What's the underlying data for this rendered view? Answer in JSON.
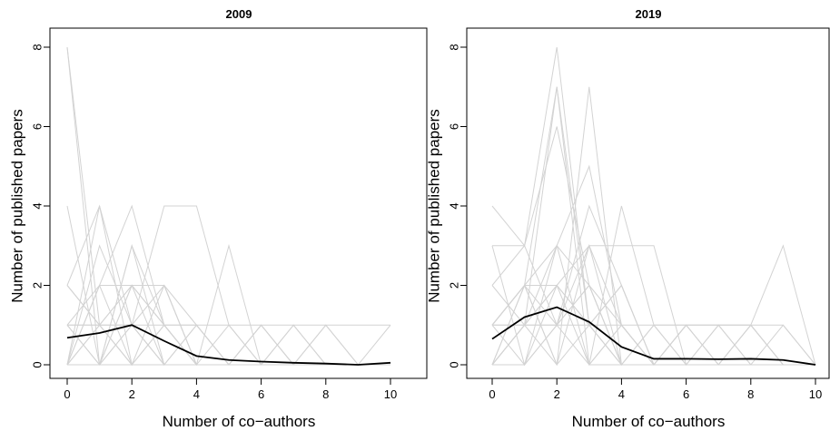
{
  "chart_data": [
    {
      "type": "line",
      "title": "2009",
      "xlabel": "Number of co−authors",
      "ylabel": "Number of published papers",
      "xlim": [
        0,
        10
      ],
      "ylim": [
        0,
        8
      ],
      "xticks": [
        "0",
        "2",
        "4",
        "6",
        "8",
        "10"
      ],
      "yticks": [
        "0",
        "2",
        "4",
        "6",
        "8"
      ],
      "grid": false,
      "background_color": "#d3d3d3",
      "mean_color": "#000000",
      "x": [
        0,
        1,
        2,
        3,
        4,
        5,
        6,
        7,
        8,
        9,
        10
      ],
      "background_series": [
        [
          8,
          0,
          0,
          0,
          0,
          0,
          0,
          0,
          0,
          0,
          0
        ],
        [
          8,
          1,
          0,
          0,
          0,
          0,
          0,
          0,
          0,
          0,
          0
        ],
        [
          4,
          0,
          3,
          1,
          0,
          0,
          0,
          0,
          0,
          0,
          0
        ],
        [
          2,
          4,
          1,
          0,
          0,
          0,
          0,
          0,
          0,
          0,
          0
        ],
        [
          0,
          4,
          0,
          1,
          0,
          0,
          0,
          0,
          0,
          0,
          0
        ],
        [
          1,
          2,
          4,
          1,
          0,
          0,
          0,
          0,
          0,
          0,
          0
        ],
        [
          0,
          3,
          1,
          4,
          4,
          1,
          0,
          0,
          0,
          0,
          0
        ],
        [
          2,
          1,
          2,
          2,
          0,
          0,
          0,
          0,
          0,
          0,
          0
        ],
        [
          0,
          2,
          0,
          2,
          1,
          0,
          0,
          0,
          0,
          0,
          0
        ],
        [
          1,
          1,
          2,
          1,
          0,
          3,
          0,
          0,
          0,
          0,
          0
        ],
        [
          0,
          0,
          3,
          0,
          1,
          0,
          1,
          0,
          1,
          0,
          0
        ],
        [
          1,
          0,
          2,
          1,
          1,
          0,
          1,
          0,
          0,
          0,
          0
        ],
        [
          0,
          1,
          0,
          1,
          0,
          1,
          0,
          1,
          0,
          0,
          1
        ],
        [
          1,
          1,
          1,
          1,
          1,
          1,
          1,
          1,
          1,
          1,
          1
        ],
        [
          0,
          0,
          2,
          0,
          1,
          0,
          1,
          0,
          0,
          0,
          0
        ],
        [
          0,
          2,
          2,
          2,
          0,
          0,
          0,
          0,
          0,
          0,
          0
        ],
        [
          1,
          0,
          1,
          0,
          0,
          0,
          0,
          1,
          0,
          0,
          0
        ],
        [
          2,
          1,
          0,
          0,
          0,
          0,
          0,
          0,
          0,
          0,
          0
        ],
        [
          0,
          1,
          1,
          0,
          0,
          0,
          0,
          0,
          1,
          0,
          0
        ],
        [
          0,
          0,
          1,
          2,
          0,
          0,
          0,
          0,
          0,
          0,
          0
        ]
      ],
      "series": [
        {
          "values": [
            0.68,
            0.8,
            1.0,
            0.6,
            0.22,
            0.12,
            0.08,
            0.05,
            0.03,
            0.0,
            0.05
          ]
        }
      ]
    },
    {
      "type": "line",
      "title": "2019",
      "xlabel": "Number of co−authors",
      "ylabel": "Number of published papers",
      "xlim": [
        0,
        10
      ],
      "ylim": [
        0,
        8
      ],
      "xticks": [
        "0",
        "2",
        "4",
        "6",
        "8",
        "10"
      ],
      "yticks": [
        "0",
        "2",
        "4",
        "6",
        "8"
      ],
      "grid": false,
      "background_color": "#d3d3d3",
      "mean_color": "#000000",
      "x": [
        0,
        1,
        2,
        3,
        4,
        5,
        6,
        7,
        8,
        9,
        10
      ],
      "background_series": [
        [
          4,
          3,
          8,
          1,
          0,
          0,
          0,
          0,
          0,
          0,
          0
        ],
        [
          1,
          2,
          7,
          1,
          0,
          0,
          0,
          0,
          0,
          0,
          0
        ],
        [
          0,
          1,
          7,
          0,
          0,
          0,
          0,
          0,
          0,
          0,
          0
        ],
        [
          2,
          3,
          6,
          2,
          1,
          0,
          0,
          0,
          0,
          0,
          0
        ],
        [
          0,
          2,
          0,
          7,
          0,
          0,
          0,
          0,
          0,
          0,
          0
        ],
        [
          1,
          1,
          3,
          5,
          1,
          0,
          0,
          0,
          0,
          0,
          0
        ],
        [
          3,
          3,
          1,
          4,
          2,
          0,
          0,
          0,
          0,
          0,
          0
        ],
        [
          1,
          2,
          3,
          0,
          4,
          1,
          0,
          0,
          0,
          0,
          0
        ],
        [
          0,
          1,
          2,
          3,
          3,
          3,
          0,
          1,
          0,
          0,
          0
        ],
        [
          0,
          0,
          1,
          2,
          0,
          1,
          1,
          1,
          1,
          3,
          0
        ],
        [
          1,
          2,
          1,
          3,
          1,
          0,
          1,
          0,
          1,
          1,
          0
        ],
        [
          2,
          1,
          0,
          1,
          2,
          0,
          0,
          1,
          1,
          0,
          0
        ],
        [
          0,
          1,
          2,
          1,
          0,
          0,
          1,
          0,
          1,
          0,
          0
        ],
        [
          1,
          1,
          1,
          1,
          1,
          1,
          1,
          1,
          1,
          0,
          0
        ],
        [
          0,
          2,
          2,
          0,
          1,
          0,
          0,
          0,
          0,
          1,
          0
        ],
        [
          1,
          0,
          3,
          2,
          0,
          0,
          1,
          1,
          0,
          0,
          0
        ],
        [
          3,
          0,
          1,
          0,
          1,
          0,
          0,
          0,
          0,
          0,
          0
        ],
        [
          0,
          1,
          1,
          2,
          0,
          0,
          0,
          0,
          1,
          0,
          0
        ],
        [
          1,
          2,
          0,
          3,
          0,
          1,
          0,
          0,
          0,
          0,
          0
        ],
        [
          0,
          0,
          2,
          1,
          2,
          0,
          1,
          0,
          0,
          0,
          0
        ]
      ],
      "series": [
        {
          "values": [
            0.65,
            1.2,
            1.45,
            1.08,
            0.45,
            0.15,
            0.15,
            0.14,
            0.15,
            0.12,
            0.0
          ]
        }
      ]
    }
  ]
}
